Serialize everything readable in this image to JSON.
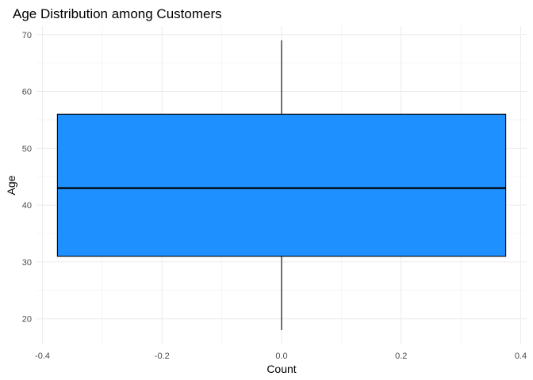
{
  "chart_data": {
    "type": "boxplot",
    "title": "Age Distribution among Customers",
    "xlabel": "Count",
    "ylabel": "Age",
    "xlim": [
      -0.41,
      0.41
    ],
    "ylim": [
      15.5,
      71.5
    ],
    "x_ticks": [
      -0.4,
      -0.2,
      0.0,
      0.2,
      0.4
    ],
    "x_tick_labels": [
      "-0.4",
      "-0.2",
      "0.0",
      "0.2",
      "0.4"
    ],
    "y_ticks": [
      20,
      30,
      40,
      50,
      60,
      70
    ],
    "y_tick_labels": [
      "20",
      "30",
      "40",
      "50",
      "60",
      "70"
    ],
    "grid": true,
    "box": {
      "x_center": 0.0,
      "x_min": -0.375,
      "x_max": 0.375,
      "min": 18,
      "q1": 31,
      "median": 43,
      "q3": 56,
      "max": 69,
      "fill": "#1E90FF",
      "line_color": "#000000"
    }
  }
}
